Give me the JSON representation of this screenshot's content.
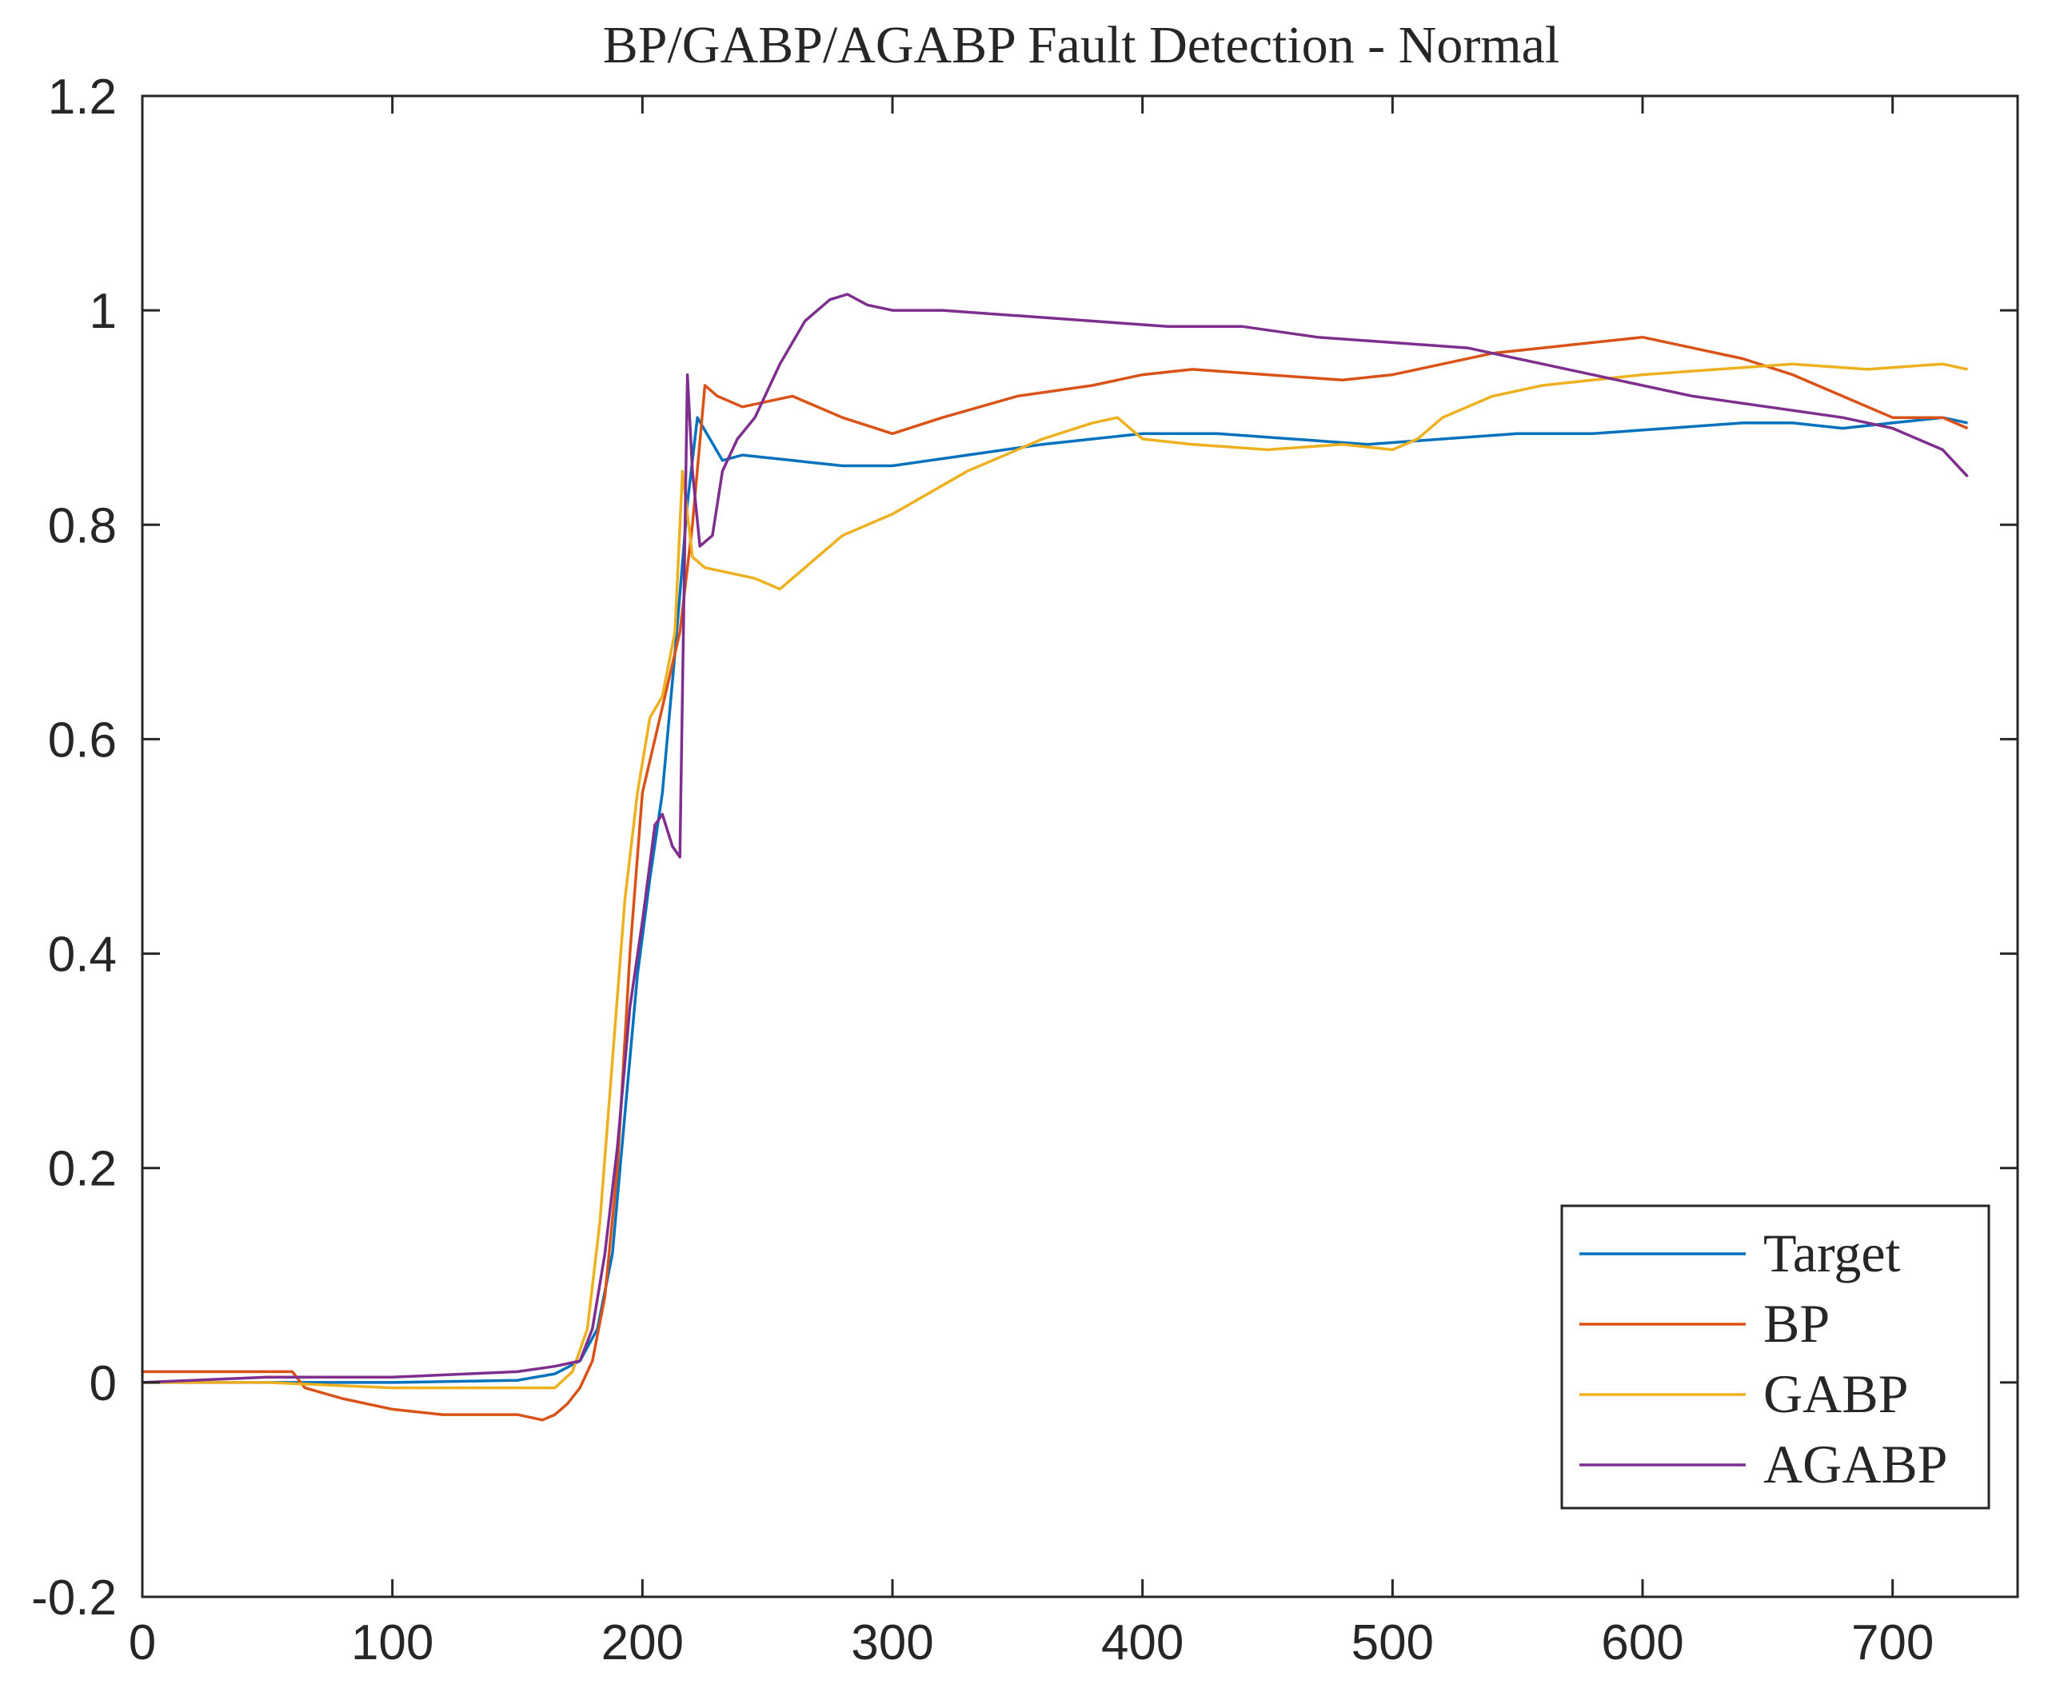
{
  "chart_data": {
    "type": "line",
    "title": "BP/GABP/AGABP Fault Detection - Normal",
    "xlabel": "",
    "ylabel": "",
    "xlim": [
      0,
      750
    ],
    "ylim": [
      -0.2,
      1.2
    ],
    "xticks": [
      0,
      100,
      200,
      300,
      400,
      500,
      600,
      700
    ],
    "yticks": [
      -0.2,
      0,
      0.2,
      0.4,
      0.6,
      0.8,
      1,
      1.2
    ],
    "xtick_labels": [
      "0",
      "100",
      "200",
      "300",
      "400",
      "500",
      "600",
      "700"
    ],
    "ytick_labels": [
      "-0.2",
      "0",
      "0.2",
      "0.4",
      "0.6",
      "0.8",
      "1",
      "1.2"
    ],
    "grid": false,
    "legend_position": "bottom-right",
    "series": [
      {
        "name": "Target",
        "color": "#0072BD",
        "x": [
          0,
          50,
          100,
          150,
          165,
          175,
          182,
          188,
          193,
          198,
          203,
          208,
          213,
          218,
          222,
          227,
          232,
          240,
          260,
          280,
          300,
          330,
          360,
          380,
          400,
          430,
          460,
          490,
          520,
          550,
          580,
          610,
          640,
          660,
          680,
          700,
          720,
          730
        ],
        "y": [
          0.0,
          0.0,
          0.0,
          0.002,
          0.008,
          0.02,
          0.05,
          0.12,
          0.25,
          0.38,
          0.47,
          0.55,
          0.68,
          0.82,
          0.9,
          0.88,
          0.86,
          0.865,
          0.86,
          0.855,
          0.855,
          0.865,
          0.875,
          0.88,
          0.885,
          0.885,
          0.88,
          0.875,
          0.88,
          0.885,
          0.885,
          0.89,
          0.895,
          0.895,
          0.89,
          0.895,
          0.9,
          0.895
        ]
      },
      {
        "name": "BP",
        "color": "#D95319",
        "x": [
          0,
          30,
          60,
          65,
          80,
          100,
          120,
          150,
          160,
          165,
          170,
          175,
          180,
          185,
          190,
          195,
          200,
          205,
          210,
          215,
          220,
          225,
          230,
          240,
          260,
          280,
          300,
          320,
          350,
          380,
          400,
          420,
          450,
          480,
          500,
          520,
          540,
          560,
          580,
          600,
          620,
          640,
          660,
          680,
          700,
          720,
          730
        ],
        "y": [
          0.01,
          0.01,
          0.01,
          -0.005,
          -0.015,
          -0.025,
          -0.03,
          -0.03,
          -0.035,
          -0.03,
          -0.02,
          -0.005,
          0.02,
          0.08,
          0.2,
          0.4,
          0.55,
          0.6,
          0.65,
          0.7,
          0.8,
          0.93,
          0.92,
          0.91,
          0.92,
          0.9,
          0.885,
          0.9,
          0.92,
          0.93,
          0.94,
          0.945,
          0.94,
          0.935,
          0.94,
          0.95,
          0.96,
          0.965,
          0.97,
          0.975,
          0.965,
          0.955,
          0.94,
          0.92,
          0.9,
          0.9,
          0.89
        ]
      },
      {
        "name": "GABP",
        "color": "#EDB120",
        "x": [
          0,
          50,
          100,
          150,
          165,
          172,
          178,
          183,
          188,
          193,
          198,
          203,
          208,
          213,
          216,
          220,
          225,
          235,
          245,
          255,
          265,
          280,
          300,
          330,
          360,
          380,
          390,
          400,
          420,
          450,
          480,
          500,
          510,
          520,
          540,
          560,
          580,
          600,
          630,
          660,
          690,
          720,
          730
        ],
        "y": [
          0.0,
          0.0,
          -0.005,
          -0.005,
          -0.005,
          0.01,
          0.05,
          0.15,
          0.3,
          0.45,
          0.55,
          0.62,
          0.64,
          0.7,
          0.85,
          0.77,
          0.76,
          0.755,
          0.75,
          0.74,
          0.76,
          0.79,
          0.81,
          0.85,
          0.88,
          0.895,
          0.9,
          0.88,
          0.875,
          0.87,
          0.875,
          0.87,
          0.88,
          0.9,
          0.92,
          0.93,
          0.935,
          0.94,
          0.945,
          0.95,
          0.945,
          0.95,
          0.945
        ]
      },
      {
        "name": "AGABP",
        "color": "#7E2F8E",
        "x": [
          0,
          50,
          100,
          150,
          165,
          175,
          180,
          185,
          190,
          195,
          200,
          205,
          208,
          212,
          215,
          218,
          220,
          223,
          228,
          232,
          238,
          245,
          255,
          265,
          275,
          282,
          290,
          300,
          320,
          350,
          380,
          410,
          440,
          470,
          500,
          530,
          560,
          590,
          620,
          650,
          680,
          700,
          720,
          730
        ],
        "y": [
          0.0,
          0.005,
          0.005,
          0.01,
          0.015,
          0.02,
          0.05,
          0.12,
          0.22,
          0.35,
          0.43,
          0.52,
          0.53,
          0.5,
          0.49,
          0.94,
          0.85,
          0.78,
          0.79,
          0.85,
          0.88,
          0.9,
          0.95,
          0.99,
          1.01,
          1.015,
          1.005,
          1.0,
          1.0,
          0.995,
          0.99,
          0.985,
          0.985,
          0.975,
          0.97,
          0.965,
          0.95,
          0.935,
          0.92,
          0.91,
          0.9,
          0.89,
          0.87,
          0.845
        ]
      }
    ]
  }
}
